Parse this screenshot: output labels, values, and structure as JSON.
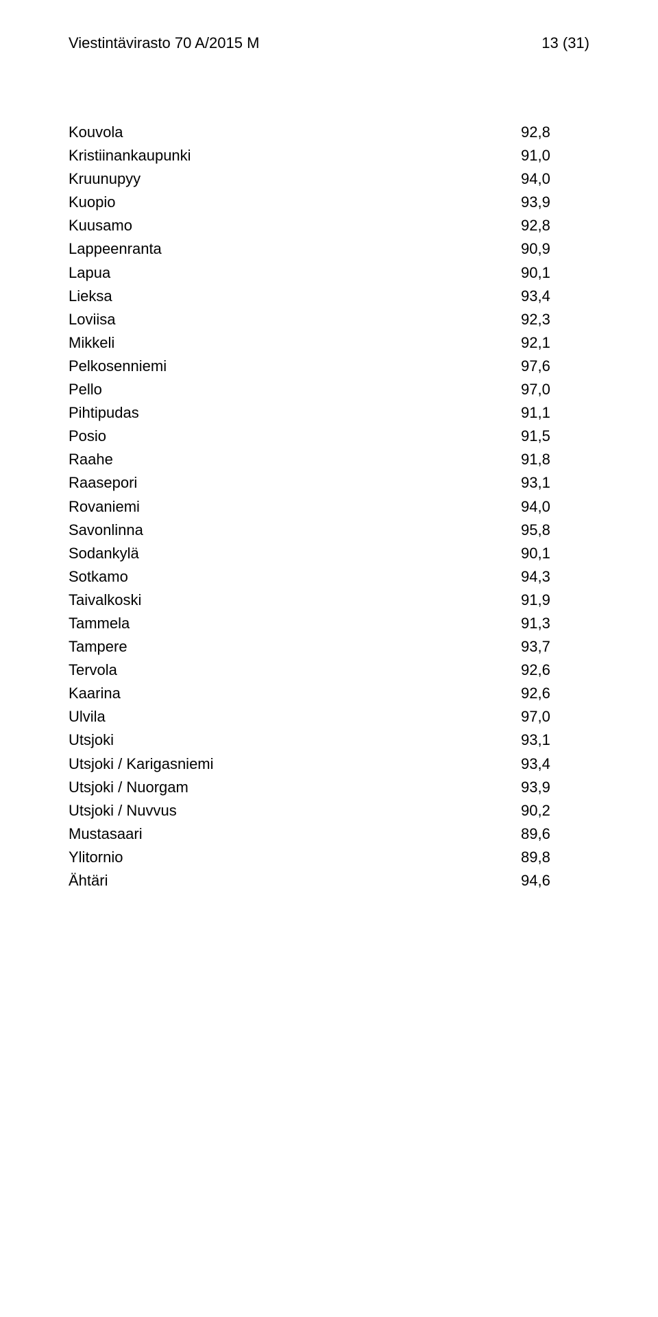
{
  "header": {
    "left": "Viestintävirasto 70 A/2015 M",
    "right": "13 (31)"
  },
  "table": {
    "rows": [
      {
        "city": "Kouvola",
        "value": "92,8"
      },
      {
        "city": "Kristiinankaupunki",
        "value": "91,0"
      },
      {
        "city": "Kruunupyy",
        "value": "94,0"
      },
      {
        "city": "Kuopio",
        "value": "93,9"
      },
      {
        "city": "Kuusamo",
        "value": "92,8"
      },
      {
        "city": "Lappeenranta",
        "value": "90,9"
      },
      {
        "city": "Lapua",
        "value": "90,1"
      },
      {
        "city": "Lieksa",
        "value": "93,4"
      },
      {
        "city": "Loviisa",
        "value": "92,3"
      },
      {
        "city": "Mikkeli",
        "value": "92,1"
      },
      {
        "city": "Pelkosenniemi",
        "value": "97,6"
      },
      {
        "city": "Pello",
        "value": "97,0"
      },
      {
        "city": "Pihtipudas",
        "value": "91,1"
      },
      {
        "city": "Posio",
        "value": "91,5"
      },
      {
        "city": "Raahe",
        "value": "91,8"
      },
      {
        "city": "Raasepori",
        "value": "93,1"
      },
      {
        "city": "Rovaniemi",
        "value": "94,0"
      },
      {
        "city": "Savonlinna",
        "value": "95,8"
      },
      {
        "city": "Sodankylä",
        "value": "90,1"
      },
      {
        "city": "Sotkamo",
        "value": "94,3"
      },
      {
        "city": "Taivalkoski",
        "value": "91,9"
      },
      {
        "city": "Tammela",
        "value": "91,3"
      },
      {
        "city": "Tampere",
        "value": "93,7"
      },
      {
        "city": "Tervola",
        "value": "92,6"
      },
      {
        "city": "Kaarina",
        "value": "92,6"
      },
      {
        "city": "Ulvila",
        "value": "97,0"
      },
      {
        "city": "Utsjoki",
        "value": "93,1"
      },
      {
        "city": "Utsjoki / Karigasniemi",
        "value": "93,4"
      },
      {
        "city": "Utsjoki / Nuorgam",
        "value": "93,9"
      },
      {
        "city": "Utsjoki / Nuvvus",
        "value": "90,2"
      },
      {
        "city": "Mustasaari",
        "value": "89,6"
      },
      {
        "city": "Ylitornio",
        "value": "89,8"
      },
      {
        "city": "Ähtäri",
        "value": "94,6"
      }
    ]
  },
  "style": {
    "background_color": "#ffffff",
    "text_color": "#000000",
    "font_family": "Verdana",
    "header_fontsize": 22,
    "row_fontsize": 22,
    "line_height": 1.55
  }
}
